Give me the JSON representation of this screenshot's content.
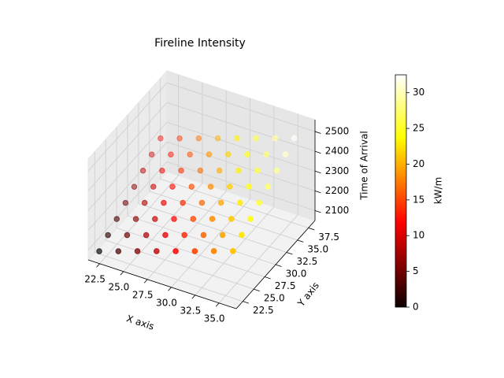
{
  "chart_data": {
    "type": "scatter3d",
    "title": "Fireline Intensity",
    "xlabel": "X axis",
    "ylabel": "Y axis",
    "zlabel": "Time of Arrival",
    "colorbar_label": "kW/m",
    "colormap": "hot",
    "xlim": [
      21.3,
      36.8
    ],
    "ylim": [
      21,
      39
    ],
    "zlim": [
      2050,
      2560
    ],
    "clim": [
      0,
      32.5
    ],
    "xticks": [
      22.5,
      {
        "value": 25.0,
        "label": "25.0"
      },
      27.5,
      {
        "value": 30.0,
        "label": "30.0"
      },
      32.5,
      {
        "value": 35.0,
        "label": "35.0"
      }
    ],
    "yticks": [
      22.5,
      {
        "value": 25.0,
        "label": "25.0"
      },
      27.5,
      {
        "value": 30.0,
        "label": "30.0"
      },
      32.5,
      {
        "value": 35.0,
        "label": "35.0"
      },
      37.5
    ],
    "zticks": [
      2100,
      2200,
      2300,
      2400,
      2500
    ],
    "cticks": [
      0,
      5,
      10,
      15,
      20,
      25,
      30
    ],
    "x": [
      22,
      22,
      22,
      22,
      22,
      22,
      22,
      22,
      24,
      24,
      24,
      24,
      24,
      24,
      24,
      24,
      26,
      26,
      26,
      26,
      26,
      26,
      26,
      26,
      28,
      28,
      28,
      28,
      28,
      28,
      28,
      28,
      30,
      30,
      30,
      30,
      30,
      30,
      30,
      30,
      32,
      32,
      32,
      32,
      32,
      32,
      32,
      32,
      34,
      34,
      34,
      34,
      34,
      34,
      34,
      34,
      36,
      36,
      36,
      36,
      36,
      36,
      36,
      36
    ],
    "y": [
      22,
      24,
      26,
      28,
      30,
      32,
      34,
      36,
      22,
      24,
      26,
      28,
      30,
      32,
      34,
      36,
      22,
      24,
      26,
      28,
      30,
      32,
      34,
      36,
      22,
      24,
      26,
      28,
      30,
      32,
      34,
      36,
      22,
      24,
      26,
      28,
      30,
      32,
      34,
      36,
      22,
      24,
      26,
      28,
      30,
      32,
      34,
      36,
      22,
      24,
      26,
      28,
      30,
      32,
      34,
      36,
      22,
      24,
      26,
      28,
      30,
      32,
      34,
      36
    ],
    "z": [
      2080,
      2112,
      2144,
      2176,
      2208,
      2240,
      2272,
      2304,
      2112,
      2144,
      2176,
      2208,
      2240,
      2272,
      2304,
      2336,
      2144,
      2176,
      2208,
      2240,
      2272,
      2304,
      2336,
      2368,
      2176,
      2208,
      2240,
      2272,
      2304,
      2336,
      2368,
      2400,
      2208,
      2240,
      2272,
      2304,
      2336,
      2368,
      2400,
      2432,
      2240,
      2272,
      2304,
      2336,
      2368,
      2400,
      2432,
      2464,
      2272,
      2304,
      2336,
      2368,
      2400,
      2432,
      2464,
      2496,
      2304,
      2336,
      2368,
      2400,
      2432,
      2464,
      2496,
      2528
    ],
    "c": [
      0,
      1.6,
      3.2,
      4.8,
      6.4,
      8,
      9.6,
      11.2,
      3,
      4.6,
      6.2,
      7.8,
      9.4,
      11,
      12.6,
      14.2,
      6,
      7.6,
      9.2,
      10.8,
      12.4,
      14,
      15.6,
      17.2,
      9,
      10.6,
      12.2,
      13.8,
      15.4,
      17,
      18.6,
      20.2,
      12,
      13.6,
      15.2,
      16.8,
      18.4,
      20,
      21.6,
      23.2,
      15,
      16.6,
      18.2,
      19.8,
      21.4,
      23,
      24.6,
      26.2,
      18,
      19.6,
      21.2,
      22.8,
      24.4,
      26,
      27.6,
      29.2,
      21,
      22.6,
      24.2,
      25.8,
      27.4,
      29,
      30.6,
      32.2
    ]
  }
}
